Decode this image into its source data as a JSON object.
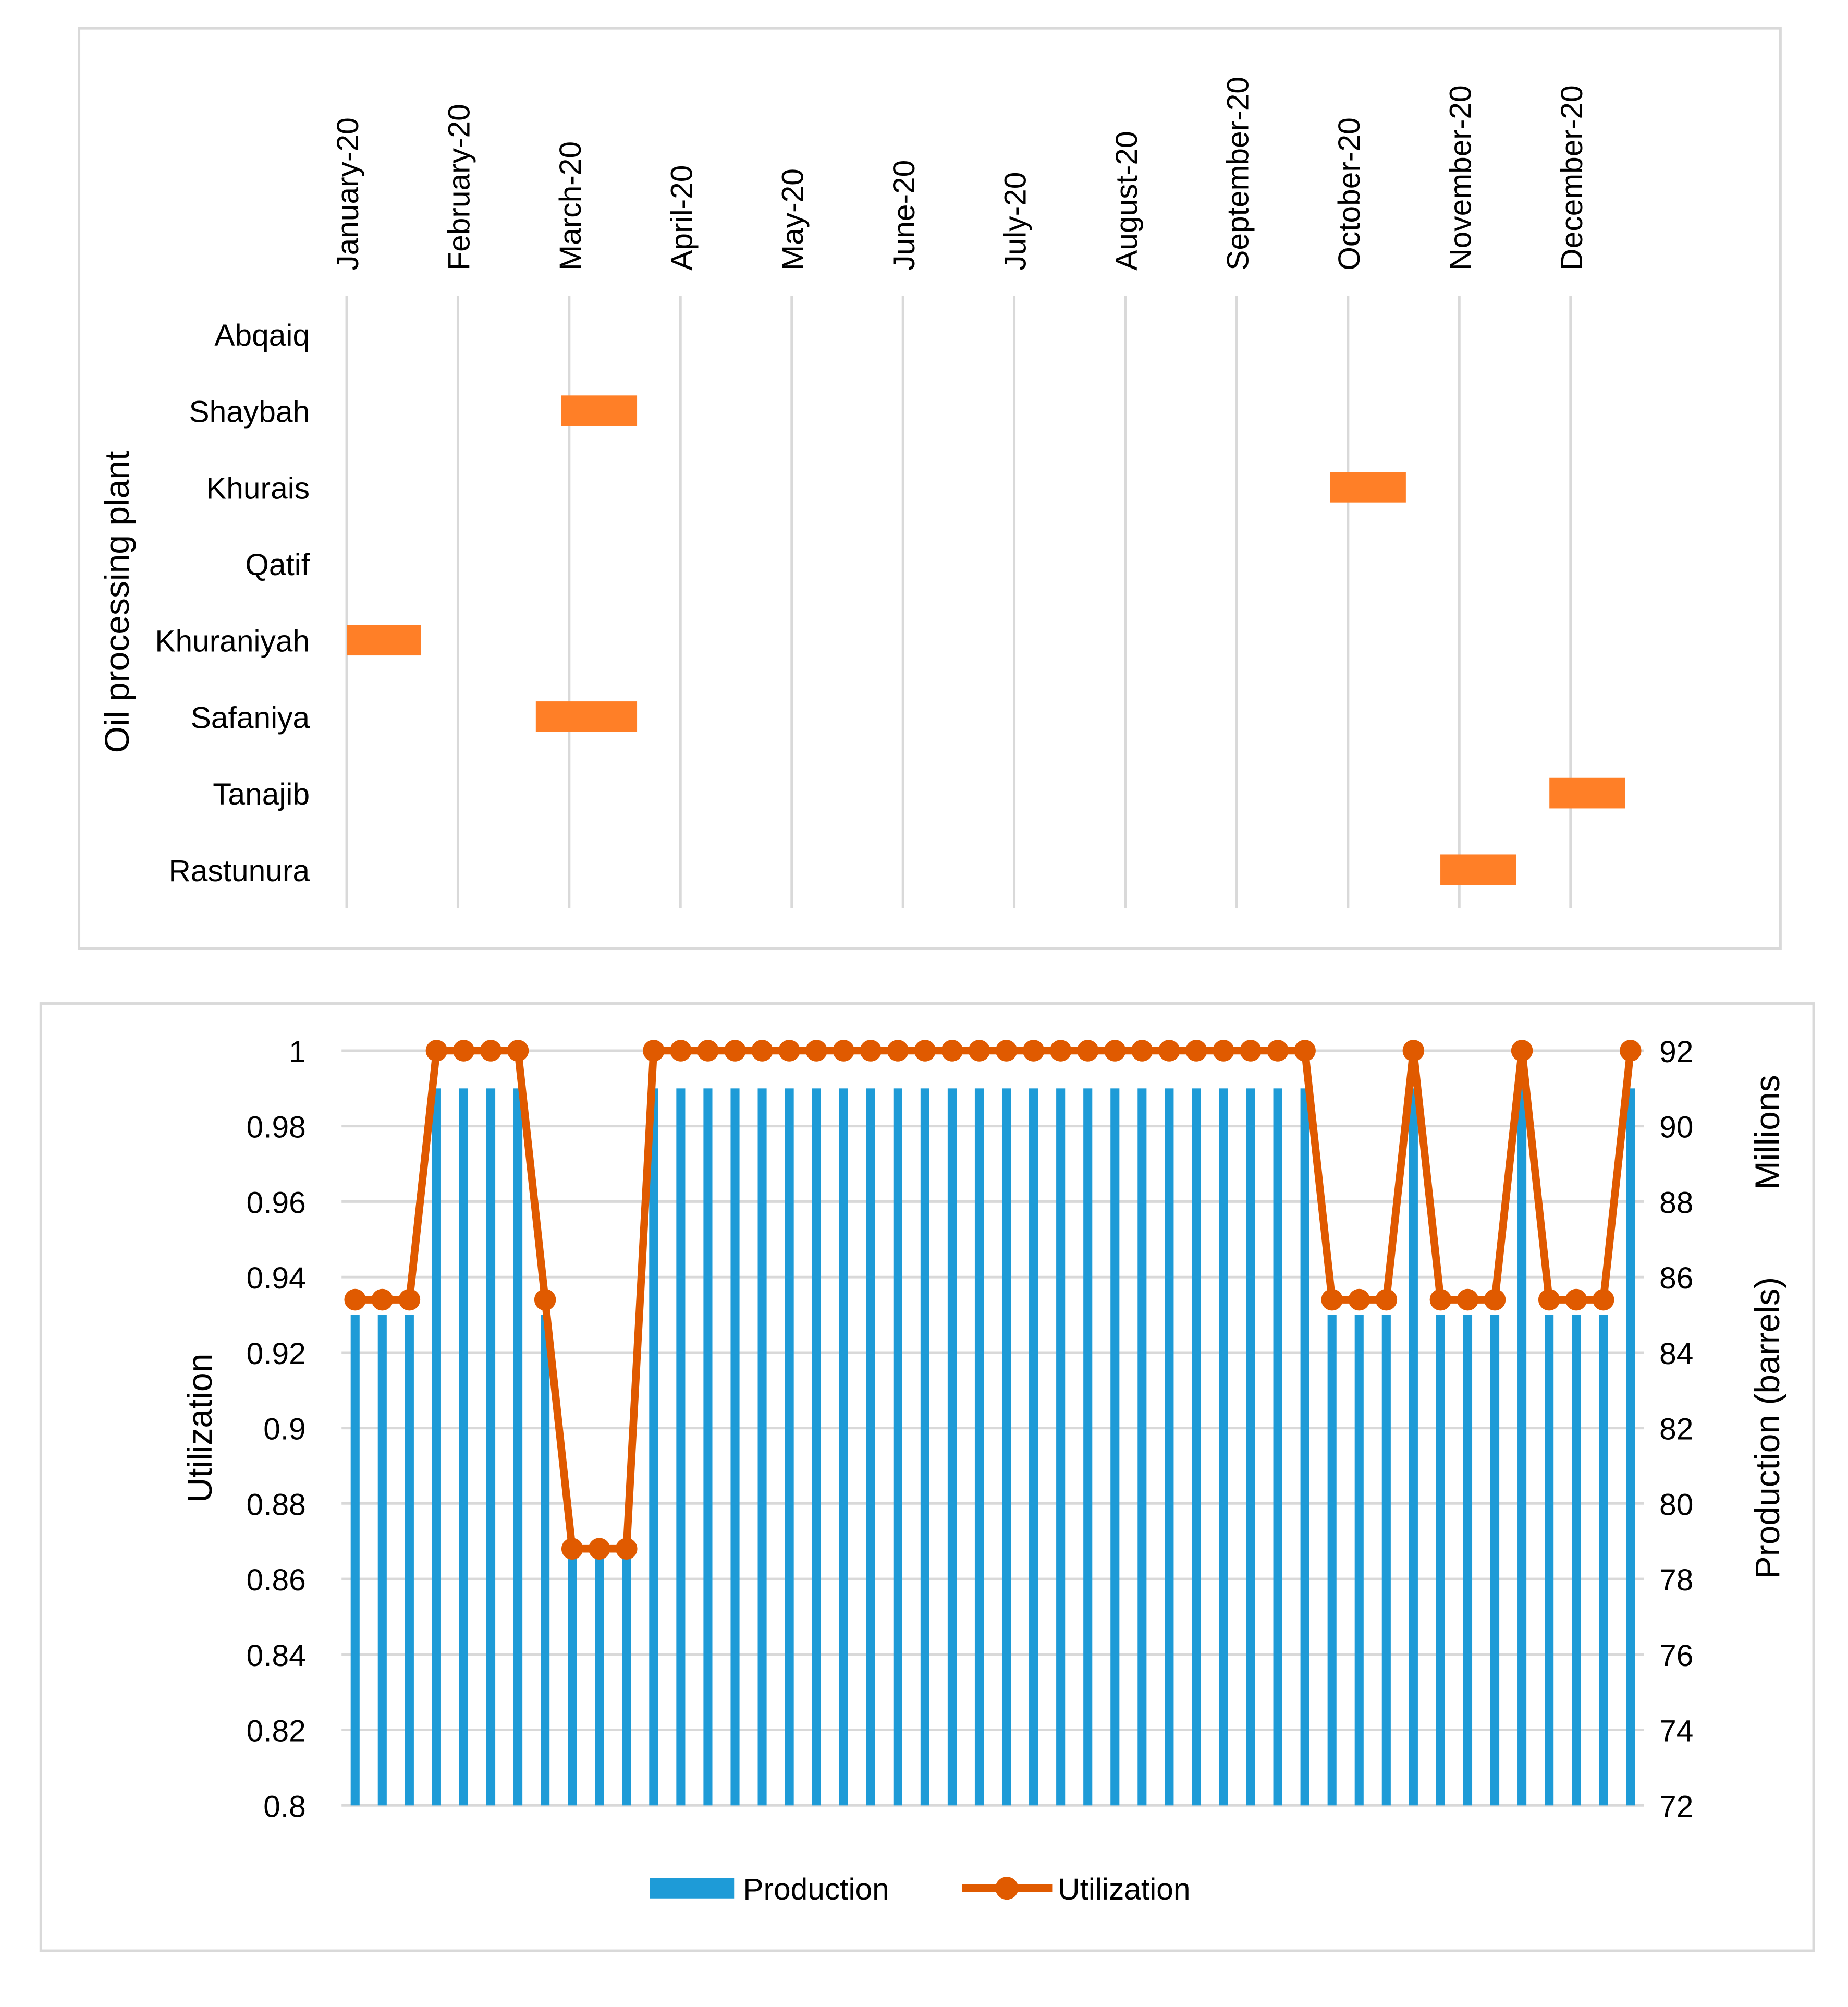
{
  "chart_data": [
    {
      "type": "gantt",
      "title": "",
      "ylabel": "Oil processing plant",
      "months": [
        "January-20",
        "February-20",
        "March-20",
        "April-20",
        "May-20",
        "June-20",
        "July-20",
        "August-20",
        "September-20",
        "October-20",
        "November-20",
        "December-20"
      ],
      "plants": [
        "Abqaiq",
        "Shaybah",
        "Khurais",
        "Qatif",
        "Khuraniyah",
        "Safaniya",
        "Tanajib",
        "Rastunura"
      ],
      "outages": [
        {
          "plant": "Shaybah",
          "start_month": 1.93,
          "duration_months": 0.68
        },
        {
          "plant": "Khurais",
          "start_month": 8.84,
          "duration_months": 0.68
        },
        {
          "plant": "Khuraniyah",
          "start_month": 0.0,
          "duration_months": 0.67
        },
        {
          "plant": "Safaniya",
          "start_month": 1.7,
          "duration_months": 0.91
        },
        {
          "plant": "Tanajib",
          "start_month": 10.81,
          "duration_months": 0.68
        },
        {
          "plant": "Rastunura",
          "start_month": 9.83,
          "duration_months": 0.68
        }
      ],
      "colors": {
        "bar": "#FF7F27",
        "grid": "#D9D9D9"
      }
    },
    {
      "type": "bar+line",
      "title": "",
      "ylabel": "Utilization",
      "y2label": "Production (barrels)",
      "y2unit": "Millions",
      "ylim": [
        0.8,
        1
      ],
      "y2lim": [
        72,
        92
      ],
      "yticks": [
        "0.8",
        "0.82",
        "0.84",
        "0.86",
        "0.88",
        "0.9",
        "0.92",
        "0.94",
        "0.96",
        "0.98",
        "1"
      ],
      "y2ticks": [
        "72",
        "74",
        "76",
        "78",
        "80",
        "82",
        "84",
        "86",
        "88",
        "90",
        "92"
      ],
      "legend": {
        "position": "bottom",
        "entries": [
          "Production",
          "Utilization"
        ]
      },
      "series": [
        {
          "name": "Production",
          "type": "bar",
          "color": "#1E9BD7",
          "values": [
            85,
            85,
            85,
            91,
            91,
            91,
            91,
            85,
            79,
            79,
            79,
            91,
            91,
            91,
            91,
            91,
            91,
            91,
            91,
            91,
            91,
            91,
            91,
            91,
            91,
            91,
            91,
            91,
            91,
            91,
            91,
            91,
            91,
            91,
            91,
            91,
            85,
            85,
            85,
            91,
            85,
            85,
            85,
            91,
            85,
            85,
            85,
            91
          ]
        },
        {
          "name": "Utilization",
          "type": "line",
          "color": "#E05A00",
          "values": [
            0.934,
            0.934,
            0.934,
            1,
            1,
            1,
            1,
            0.934,
            0.868,
            0.868,
            0.868,
            1,
            1,
            1,
            1,
            1,
            1,
            1,
            1,
            1,
            1,
            1,
            1,
            1,
            1,
            1,
            1,
            1,
            1,
            1,
            1,
            1,
            1,
            1,
            1,
            1,
            0.934,
            0.934,
            0.934,
            1,
            0.934,
            0.934,
            0.934,
            1,
            0.934,
            0.934,
            0.934,
            1
          ]
        }
      ]
    }
  ]
}
